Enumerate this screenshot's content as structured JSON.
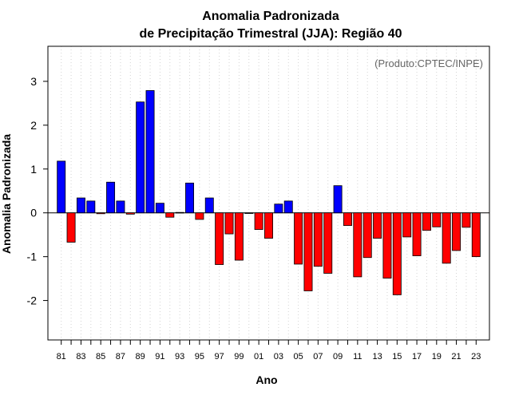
{
  "chart_data": {
    "type": "bar",
    "title": "Anomalia Padronizada",
    "subtitle": "de Precipitação Trimestral (JJA): Região 40",
    "xlabel": "Ano",
    "ylabel": "Anomalia Padronizada",
    "credit": "(Produto:CPTEC/INPE)",
    "ylim": [
      -2.9,
      3.8
    ],
    "yticks": [
      -2,
      -1,
      0,
      1,
      2,
      3
    ],
    "xtick_labels": [
      "81",
      "83",
      "85",
      "87",
      "89",
      "91",
      "93",
      "95",
      "97",
      "99",
      "01",
      "03",
      "05",
      "07",
      "09",
      "11",
      "13",
      "15",
      "17",
      "19",
      "21",
      "23"
    ],
    "categories": [
      "1981",
      "1982",
      "1983",
      "1984",
      "1985",
      "1986",
      "1987",
      "1988",
      "1989",
      "1990",
      "1991",
      "1992",
      "1993",
      "1994",
      "1995",
      "1996",
      "1997",
      "1998",
      "1999",
      "2000",
      "2001",
      "2002",
      "2003",
      "2004",
      "2005",
      "2006",
      "2007",
      "2008",
      "2009",
      "2010",
      "2011",
      "2012",
      "2013",
      "2014",
      "2015",
      "2016",
      "2017",
      "2018",
      "2019",
      "2020",
      "2021",
      "2022",
      "2023"
    ],
    "values": [
      1.18,
      -0.67,
      0.34,
      0.27,
      -0.02,
      0.7,
      0.27,
      -0.03,
      2.53,
      2.79,
      0.22,
      -0.1,
      0.01,
      0.68,
      -0.15,
      0.34,
      -1.18,
      -0.48,
      -1.08,
      -0.01,
      -0.38,
      -0.58,
      0.2,
      0.27,
      -1.17,
      -1.78,
      -1.22,
      -1.38,
      0.62,
      -0.29,
      -1.46,
      -1.02,
      -0.58,
      -1.49,
      -1.87,
      -0.55,
      -0.98,
      -0.4,
      -0.32,
      -1.15,
      -0.86,
      -0.33,
      -1.0
    ],
    "grid": "vertical dotted",
    "colors": {
      "positive": "#0000ff",
      "negative": "#ff0000",
      "grid": "#d3d3d3",
      "credit": "#666666"
    }
  }
}
